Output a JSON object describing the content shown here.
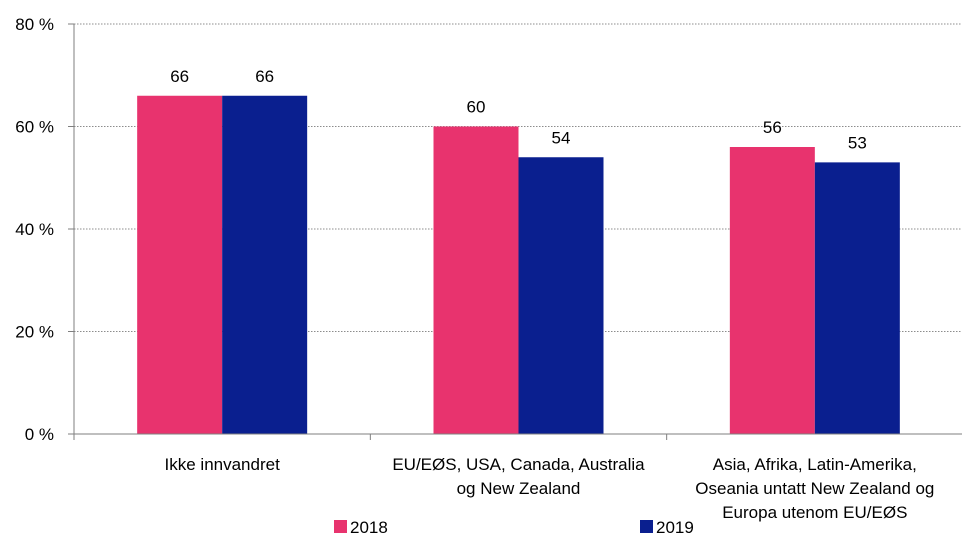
{
  "chart_data": {
    "type": "bar",
    "title": "",
    "xlabel": "",
    "ylabel": "",
    "ylim": [
      0,
      80
    ],
    "yticks": [
      0,
      20,
      40,
      60,
      80
    ],
    "ytick_labels": [
      "0 %",
      "20 %",
      "40 %",
      "60 %",
      "80 %"
    ],
    "grid": true,
    "legend_position": "bottom",
    "categories": [
      [
        "Ikke innvandret"
      ],
      [
        "EU/EØS, USA, Canada, Australia",
        "og New Zealand"
      ],
      [
        "Asia, Afrika, Latin-Amerika,",
        "Oseania untatt New Zealand og",
        "Europa utenom EU/EØS"
      ]
    ],
    "series": [
      {
        "name": "2018",
        "color": "#e8336e",
        "values": [
          66,
          60,
          56
        ]
      },
      {
        "name": "2019",
        "color": "#0a1f8f",
        "values": [
          66,
          54,
          53
        ]
      }
    ]
  }
}
